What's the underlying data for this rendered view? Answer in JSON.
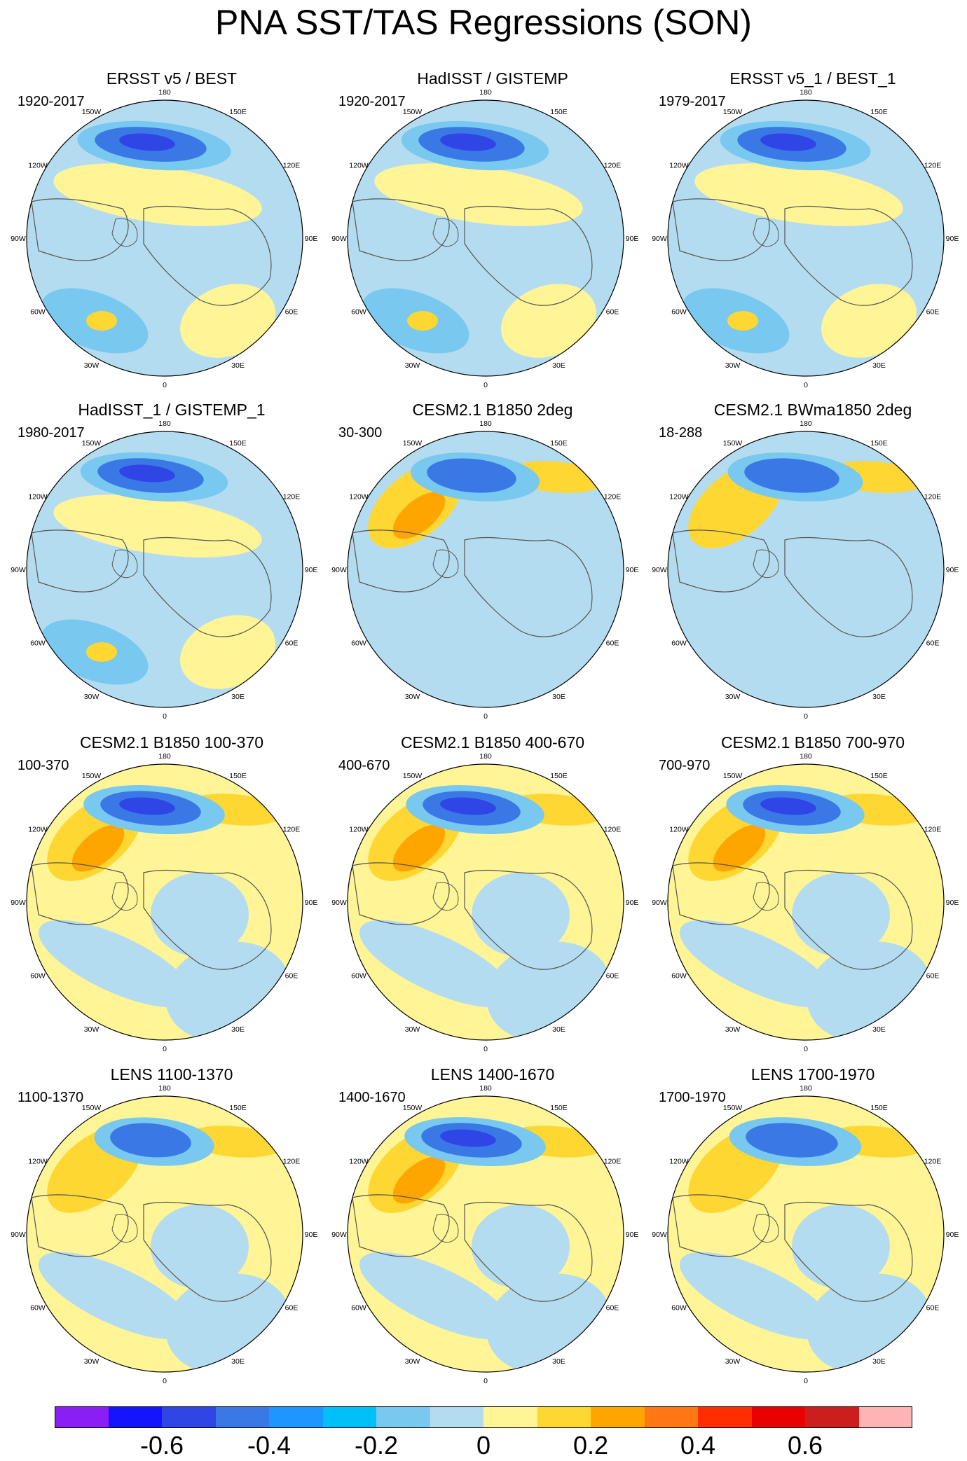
{
  "title": "PNA SST/TAS Regressions (SON)",
  "lon_labels": [
    "180",
    "150E",
    "120E",
    "90E",
    "60E",
    "30E",
    "0",
    "30W",
    "60W",
    "90W",
    "120W",
    "150W"
  ],
  "panels": [
    {
      "title": "ERSST v5 / BEST",
      "range": "1920-2017",
      "neg_strength": 1.0,
      "pos_strength": 0.35,
      "base": "neg"
    },
    {
      "title": "HadISST / GISTEMP",
      "range": "1920-2017",
      "neg_strength": 0.9,
      "pos_strength": 0.4,
      "base": "neg"
    },
    {
      "title": "ERSST v5_1 / BEST_1",
      "range": "1979-2017",
      "neg_strength": 0.95,
      "pos_strength": 0.35,
      "base": "neg"
    },
    {
      "title": "HadISST_1 / GISTEMP_1",
      "range": "1980-2017",
      "neg_strength": 0.9,
      "pos_strength": 0.3,
      "base": "neg"
    },
    {
      "title": "CESM2.1 B1850 2deg",
      "range": "30-300",
      "neg_strength": 0.6,
      "pos_strength": 0.7,
      "base": "mix"
    },
    {
      "title": "CESM2.1 BWma1850 2deg",
      "range": "18-288",
      "neg_strength": 0.7,
      "pos_strength": 0.6,
      "base": "mix"
    },
    {
      "title": "CESM2.1 B1850 100-370",
      "range": "100-370",
      "neg_strength": 0.8,
      "pos_strength": 0.7,
      "base": "pos"
    },
    {
      "title": "CESM2.1 B1850 400-670",
      "range": "400-670",
      "neg_strength": 0.75,
      "pos_strength": 0.7,
      "base": "pos"
    },
    {
      "title": "CESM2.1 B1850 700-970",
      "range": "700-970",
      "neg_strength": 0.75,
      "pos_strength": 0.7,
      "base": "pos"
    },
    {
      "title": "LENS 1100-1370",
      "range": "1100-1370",
      "neg_strength": 0.45,
      "pos_strength": 0.6,
      "base": "pos"
    },
    {
      "title": "LENS 1400-1670",
      "range": "1400-1670",
      "neg_strength": 0.8,
      "pos_strength": 0.85,
      "base": "pos"
    },
    {
      "title": "LENS 1700-1970",
      "range": "1700-1970",
      "neg_strength": 0.65,
      "pos_strength": 0.65,
      "base": "pos"
    }
  ],
  "colorbar": {
    "colors": [
      "#8a1ef5",
      "#1414ff",
      "#2f45e6",
      "#3a78e6",
      "#1e96ff",
      "#00c0fa",
      "#78c8f0",
      "#b4dcf0",
      "#fff596",
      "#ffd732",
      "#ffa500",
      "#ff7814",
      "#ff2d00",
      "#eb0000",
      "#cd1e1e",
      "#ffb4b4"
    ],
    "labels": [
      "-0.6",
      "-0.4",
      "-0.2",
      "0",
      "0.2",
      "0.4",
      "0.6"
    ]
  },
  "palette": {
    "neg3": "#2f45e6",
    "neg2": "#3a78e6",
    "neg1": "#78c8f0",
    "neg0": "#b4dcf0",
    "pos0": "#fff596",
    "pos1": "#ffd732",
    "pos2": "#ffa500",
    "pos3": "#ff7814",
    "land": "#ffffff",
    "coast": "#555555"
  }
}
